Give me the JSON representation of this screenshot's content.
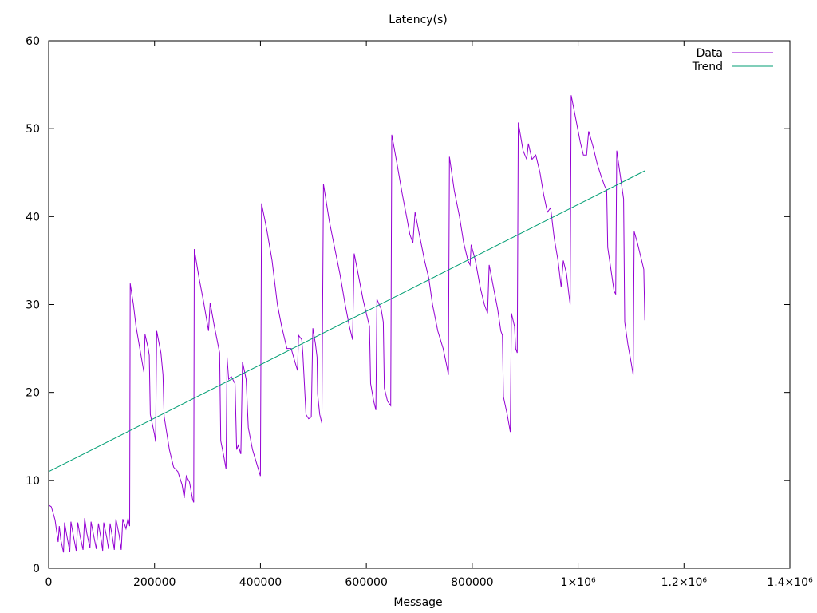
{
  "chart_data": {
    "type": "line",
    "title": "Latency(s)",
    "xlabel": "Message",
    "ylabel": "",
    "xlim": [
      0,
      1400000
    ],
    "ylim": [
      0,
      60
    ],
    "x_ticks": [
      {
        "value": 0,
        "label": "0"
      },
      {
        "value": 200000,
        "label": "200000"
      },
      {
        "value": 400000,
        "label": "400000"
      },
      {
        "value": 600000,
        "label": "600000"
      },
      {
        "value": 800000,
        "label": "800000"
      },
      {
        "value": 1000000,
        "label": "1×10⁶"
      },
      {
        "value": 1200000,
        "label": "1.2×10⁶"
      },
      {
        "value": 1400000,
        "label": "1.4×10⁶"
      }
    ],
    "y_ticks": [
      {
        "value": 0,
        "label": "0"
      },
      {
        "value": 10,
        "label": "10"
      },
      {
        "value": 20,
        "label": "20"
      },
      {
        "value": 30,
        "label": "30"
      },
      {
        "value": 40,
        "label": "40"
      },
      {
        "value": 50,
        "label": "50"
      },
      {
        "value": 60,
        "label": "60"
      }
    ],
    "grid": false,
    "legend_position": "top-right",
    "series": [
      {
        "name": "Data",
        "color": "#9400d3",
        "points": [
          [
            0,
            7.2
          ],
          [
            5000,
            7.0
          ],
          [
            12000,
            5.5
          ],
          [
            18000,
            3.0
          ],
          [
            20000,
            4.8
          ],
          [
            23000,
            3.2
          ],
          [
            28000,
            1.8
          ],
          [
            30000,
            5.2
          ],
          [
            35000,
            3.5
          ],
          [
            40000,
            1.9
          ],
          [
            42000,
            5.3
          ],
          [
            47000,
            3.6
          ],
          [
            52000,
            2.0
          ],
          [
            55000,
            5.2
          ],
          [
            60000,
            3.5
          ],
          [
            65000,
            2.1
          ],
          [
            68000,
            5.7
          ],
          [
            72000,
            4.0
          ],
          [
            78000,
            2.3
          ],
          [
            80000,
            5.3
          ],
          [
            86000,
            3.4
          ],
          [
            90000,
            2.2
          ],
          [
            94000,
            5.1
          ],
          [
            99000,
            3.3
          ],
          [
            102000,
            2.0
          ],
          [
            104000,
            5.2
          ],
          [
            110000,
            3.4
          ],
          [
            113000,
            2.2
          ],
          [
            116000,
            5.1
          ],
          [
            121000,
            3.3
          ],
          [
            124000,
            2.1
          ],
          [
            127000,
            5.6
          ],
          [
            133000,
            3.8
          ],
          [
            137000,
            2.1
          ],
          [
            140000,
            5.6
          ],
          [
            146000,
            4.5
          ],
          [
            150000,
            5.7
          ],
          [
            153000,
            4.8
          ],
          [
            154000,
            32.4
          ],
          [
            160000,
            30.0
          ],
          [
            165000,
            27.5
          ],
          [
            175000,
            24.0
          ],
          [
            180000,
            22.3
          ],
          [
            182000,
            26.6
          ],
          [
            188000,
            25.0
          ],
          [
            190000,
            24.2
          ],
          [
            192000,
            17.5
          ],
          [
            200000,
            15.2
          ],
          [
            202000,
            14.4
          ],
          [
            204000,
            27.0
          ],
          [
            212000,
            24.5
          ],
          [
            216000,
            22.0
          ],
          [
            218000,
            17.3
          ],
          [
            228000,
            13.5
          ],
          [
            236000,
            11.5
          ],
          [
            244000,
            11.0
          ],
          [
            252000,
            9.5
          ],
          [
            256000,
            8.0
          ],
          [
            260000,
            10.5
          ],
          [
            266000,
            9.8
          ],
          [
            272000,
            7.8
          ],
          [
            274000,
            7.5
          ],
          [
            275000,
            36.3
          ],
          [
            284000,
            33.0
          ],
          [
            292000,
            30.5
          ],
          [
            302000,
            27.0
          ],
          [
            305000,
            30.2
          ],
          [
            313000,
            27.5
          ],
          [
            323000,
            24.5
          ],
          [
            325000,
            14.5
          ],
          [
            330000,
            13.0
          ],
          [
            335000,
            11.3
          ],
          [
            337000,
            24.0
          ],
          [
            340000,
            21.5
          ],
          [
            345000,
            21.8
          ],
          [
            352000,
            21.0
          ],
          [
            355000,
            13.5
          ],
          [
            358000,
            14.0
          ],
          [
            363000,
            13.0
          ],
          [
            366000,
            23.5
          ],
          [
            373000,
            21.5
          ],
          [
            377000,
            16.0
          ],
          [
            385000,
            13.5
          ],
          [
            395000,
            11.5
          ],
          [
            400000,
            10.5
          ],
          [
            402000,
            41.5
          ],
          [
            412000,
            38.5
          ],
          [
            422000,
            35.0
          ],
          [
            432000,
            30.0
          ],
          [
            440000,
            27.5
          ],
          [
            450000,
            25.0
          ],
          [
            458000,
            25.0
          ],
          [
            465000,
            23.5
          ],
          [
            470000,
            22.5
          ],
          [
            472000,
            26.5
          ],
          [
            478000,
            26.0
          ],
          [
            480000,
            24.5
          ],
          [
            486000,
            17.5
          ],
          [
            491000,
            17.0
          ],
          [
            496000,
            17.2
          ],
          [
            499000,
            27.3
          ],
          [
            504000,
            25.5
          ],
          [
            507000,
            24.0
          ],
          [
            508000,
            19.8
          ],
          [
            512000,
            17.5
          ],
          [
            516000,
            16.5
          ],
          [
            519000,
            43.7
          ],
          [
            530000,
            39.5
          ],
          [
            540000,
            36.5
          ],
          [
            550000,
            33.5
          ],
          [
            560000,
            30.0
          ],
          [
            568000,
            27.5
          ],
          [
            574000,
            26.0
          ],
          [
            577000,
            35.8
          ],
          [
            586000,
            33.0
          ],
          [
            594000,
            30.5
          ],
          [
            600000,
            29.0
          ],
          [
            606000,
            27.5
          ],
          [
            608000,
            21.0
          ],
          [
            614000,
            19.0
          ],
          [
            618000,
            18.0
          ],
          [
            620000,
            30.6
          ],
          [
            628000,
            29.5
          ],
          [
            632000,
            28.0
          ],
          [
            634000,
            20.5
          ],
          [
            640000,
            19.0
          ],
          [
            646000,
            18.5
          ],
          [
            648000,
            49.3
          ],
          [
            658000,
            46.0
          ],
          [
            668000,
            42.5
          ],
          [
            676000,
            40.0
          ],
          [
            682000,
            38.0
          ],
          [
            688000,
            37.0
          ],
          [
            692000,
            40.5
          ],
          [
            700000,
            38.0
          ],
          [
            710000,
            35.0
          ],
          [
            718000,
            33.0
          ],
          [
            725000,
            30.0
          ],
          [
            735000,
            27.0
          ],
          [
            745000,
            25.0
          ],
          [
            752000,
            23.0
          ],
          [
            755000,
            22.0
          ],
          [
            757000,
            46.8
          ],
          [
            766000,
            43.0
          ],
          [
            776000,
            40.0
          ],
          [
            784000,
            37.0
          ],
          [
            792000,
            35.0
          ],
          [
            796000,
            34.5
          ],
          [
            798000,
            36.8
          ],
          [
            806000,
            35.0
          ],
          [
            815000,
            32.0
          ],
          [
            823000,
            30.0
          ],
          [
            829000,
            29.0
          ],
          [
            832000,
            34.5
          ],
          [
            840000,
            32.0
          ],
          [
            848000,
            29.5
          ],
          [
            854000,
            27.0
          ],
          [
            857000,
            26.5
          ],
          [
            859000,
            19.5
          ],
          [
            866000,
            17.5
          ],
          [
            872000,
            15.5
          ],
          [
            874000,
            29.0
          ],
          [
            880000,
            27.5
          ],
          [
            882000,
            25.0
          ],
          [
            885000,
            24.5
          ],
          [
            887000,
            50.7
          ],
          [
            896000,
            47.5
          ],
          [
            903000,
            46.5
          ],
          [
            906000,
            48.3
          ],
          [
            913000,
            46.5
          ],
          [
            920000,
            47.0
          ],
          [
            928000,
            45.0
          ],
          [
            935000,
            42.5
          ],
          [
            942000,
            40.5
          ],
          [
            948000,
            41.0
          ],
          [
            955000,
            37.5
          ],
          [
            962000,
            35.0
          ],
          [
            968000,
            32.0
          ],
          [
            972000,
            35.0
          ],
          [
            978000,
            33.5
          ],
          [
            982000,
            31.5
          ],
          [
            985000,
            30.0
          ],
          [
            987000,
            53.8
          ],
          [
            996000,
            51.0
          ],
          [
            1004000,
            48.5
          ],
          [
            1010000,
            47.0
          ],
          [
            1016000,
            47.0
          ],
          [
            1020000,
            49.7
          ],
          [
            1028000,
            48.0
          ],
          [
            1036000,
            46.0
          ],
          [
            1044000,
            44.5
          ],
          [
            1050000,
            43.5
          ],
          [
            1054000,
            43.0
          ],
          [
            1056000,
            36.5
          ],
          [
            1062000,
            34.0
          ],
          [
            1068000,
            31.5
          ],
          [
            1071000,
            31.2
          ],
          [
            1073000,
            47.5
          ],
          [
            1080000,
            44.5
          ],
          [
            1086000,
            42.0
          ],
          [
            1088000,
            28.0
          ],
          [
            1094000,
            25.5
          ],
          [
            1100000,
            23.5
          ],
          [
            1104000,
            22.0
          ],
          [
            1106000,
            38.3
          ],
          [
            1112000,
            37.0
          ],
          [
            1118000,
            35.5
          ],
          [
            1124000,
            34.0
          ],
          [
            1126000,
            28.2
          ]
        ]
      },
      {
        "name": "Trend",
        "color": "#009e73",
        "points": [
          [
            0,
            11.0
          ],
          [
            1126000,
            45.2
          ]
        ]
      }
    ]
  }
}
